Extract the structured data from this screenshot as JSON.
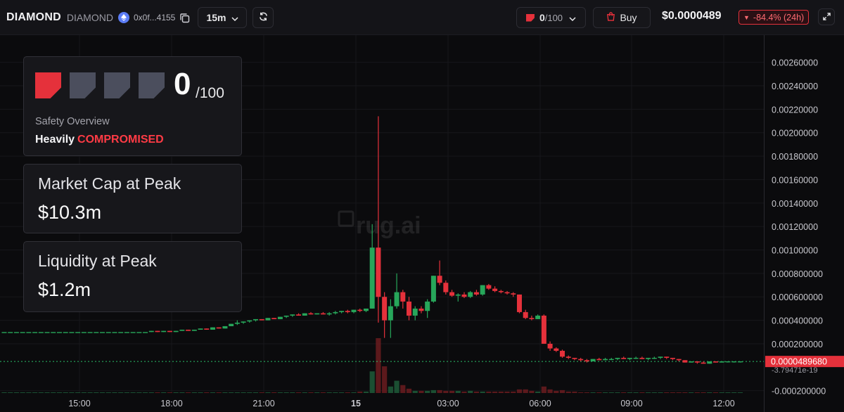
{
  "header": {
    "ticker": "DIAMOND",
    "token_name": "DIAMOND",
    "chain_icon": "ethereum-icon",
    "address": "0x0f...4155",
    "timeframe": "15m",
    "score_value": "0",
    "score_denominator": "/100",
    "buy_label": "Buy",
    "price": "$0.0000489",
    "change": "-84.4% (24h)",
    "change_direction": "down",
    "accent_red": "#e5313b",
    "accent_green": "#27a65a"
  },
  "safety_card": {
    "score": "0",
    "denominator": "/100",
    "segments": [
      true,
      false,
      false,
      false
    ],
    "title": "Safety Overview",
    "status_level": "Heavily",
    "status_word": "COMPROMISED"
  },
  "market_cap_card": {
    "label": "Market Cap at Peak",
    "value": "$10.3m"
  },
  "liquidity_card": {
    "label": "Liquidity at Peak",
    "value": "$1.2m"
  },
  "chart_data": {
    "type": "candlestick",
    "watermark": "rug.ai",
    "y_ticks": [
      "0.00260000",
      "0.00240000",
      "0.00220000",
      "0.00200000",
      "0.00180000",
      "0.00160000",
      "0.00140000",
      "0.00120000",
      "0.00100000",
      "0.000800000",
      "0.000600000",
      "0.000400000",
      "0.000200000",
      "-0.000200000"
    ],
    "y_range": [
      -0.00022,
      0.0027
    ],
    "x_ticks": [
      "15:00",
      "18:00",
      "21:00",
      "15",
      "03:00",
      "06:00",
      "09:00",
      "12:00"
    ],
    "current_price_label": "0.0000489680",
    "baseline_label": "-3.79471e-19",
    "candles": [
      {
        "o": 0.0003,
        "h": 0.0003,
        "l": 0.0003,
        "c": 0.0003
      },
      {
        "o": 0.0003,
        "h": 0.0003,
        "l": 0.0003,
        "c": 0.0003
      },
      {
        "o": 0.0003,
        "h": 0.0003,
        "l": 0.0003,
        "c": 0.0003
      },
      {
        "o": 0.0003,
        "h": 0.0003,
        "l": 0.0003,
        "c": 0.0003
      },
      {
        "o": 0.0003,
        "h": 0.0003,
        "l": 0.0003,
        "c": 0.0003
      },
      {
        "o": 0.0003,
        "h": 0.0003,
        "l": 0.0003,
        "c": 0.0003
      },
      {
        "o": 0.0003,
        "h": 0.0003,
        "l": 0.0003,
        "c": 0.0003
      },
      {
        "o": 0.0003,
        "h": 0.0003,
        "l": 0.0003,
        "c": 0.0003
      },
      {
        "o": 0.0003,
        "h": 0.0003,
        "l": 0.0003,
        "c": 0.0003
      },
      {
        "o": 0.0003,
        "h": 0.0003,
        "l": 0.0003,
        "c": 0.0003
      },
      {
        "o": 0.0003,
        "h": 0.0003,
        "l": 0.0003,
        "c": 0.0003
      },
      {
        "o": 0.0003,
        "h": 0.0003,
        "l": 0.0003,
        "c": 0.0003
      },
      {
        "o": 0.0003,
        "h": 0.0003,
        "l": 0.0003,
        "c": 0.0003
      },
      {
        "o": 0.0003,
        "h": 0.0003,
        "l": 0.0003,
        "c": 0.0003
      },
      {
        "o": 0.0003,
        "h": 0.0003,
        "l": 0.0003,
        "c": 0.0003
      },
      {
        "o": 0.0003,
        "h": 0.0003,
        "l": 0.0003,
        "c": 0.0003
      },
      {
        "o": 0.0003,
        "h": 0.0003,
        "l": 0.0003,
        "c": 0.0003
      },
      {
        "o": 0.0003,
        "h": 0.0003,
        "l": 0.0003,
        "c": 0.0003
      },
      {
        "o": 0.0003,
        "h": 0.0003,
        "l": 0.0003,
        "c": 0.0003
      },
      {
        "o": 0.0003,
        "h": 0.0003,
        "l": 0.0003,
        "c": 0.0003
      },
      {
        "o": 0.0003,
        "h": 0.0003,
        "l": 0.0003,
        "c": 0.0003
      },
      {
        "o": 0.0003,
        "h": 0.0003,
        "l": 0.0003,
        "c": 0.0003
      },
      {
        "o": 0.0003,
        "h": 0.0003,
        "l": 0.0003,
        "c": 0.0003
      },
      {
        "o": 0.0003,
        "h": 0.0003,
        "l": 0.0003,
        "c": 0.0003
      },
      {
        "o": 0.0003,
        "h": 0.00031,
        "l": 0.0003,
        "c": 0.00031
      },
      {
        "o": 0.00031,
        "h": 0.00031,
        "l": 0.0003,
        "c": 0.0003
      },
      {
        "o": 0.0003,
        "h": 0.00031,
        "l": 0.0003,
        "c": 0.00031
      },
      {
        "o": 0.00031,
        "h": 0.00031,
        "l": 0.0003,
        "c": 0.0003
      },
      {
        "o": 0.0003,
        "h": 0.00031,
        "l": 0.0003,
        "c": 0.00031
      },
      {
        "o": 0.00031,
        "h": 0.00032,
        "l": 0.00031,
        "c": 0.00032
      },
      {
        "o": 0.00032,
        "h": 0.00032,
        "l": 0.00031,
        "c": 0.00031
      },
      {
        "o": 0.00031,
        "h": 0.00032,
        "l": 0.00031,
        "c": 0.00032
      },
      {
        "o": 0.00032,
        "h": 0.00033,
        "l": 0.00032,
        "c": 0.00033
      },
      {
        "o": 0.00033,
        "h": 0.00033,
        "l": 0.00032,
        "c": 0.00032
      },
      {
        "o": 0.00032,
        "h": 0.00034,
        "l": 0.00032,
        "c": 0.00034
      },
      {
        "o": 0.00034,
        "h": 0.00034,
        "l": 0.00033,
        "c": 0.00033
      },
      {
        "o": 0.00033,
        "h": 0.00035,
        "l": 0.00033,
        "c": 0.00035
      },
      {
        "o": 0.00035,
        "h": 0.00037,
        "l": 0.00035,
        "c": 0.00037
      },
      {
        "o": 0.00037,
        "h": 0.0004,
        "l": 0.00036,
        "c": 0.00038
      },
      {
        "o": 0.00038,
        "h": 0.00039,
        "l": 0.00037,
        "c": 0.00039
      },
      {
        "o": 0.00039,
        "h": 0.0004,
        "l": 0.00038,
        "c": 0.0004
      },
      {
        "o": 0.0004,
        "h": 0.00041,
        "l": 0.00039,
        "c": 0.00041
      },
      {
        "o": 0.00041,
        "h": 0.00041,
        "l": 0.0004,
        "c": 0.0004
      },
      {
        "o": 0.0004,
        "h": 0.00042,
        "l": 0.0004,
        "c": 0.00042
      },
      {
        "o": 0.00042,
        "h": 0.00042,
        "l": 0.00041,
        "c": 0.00041
      },
      {
        "o": 0.00041,
        "h": 0.00043,
        "l": 0.00041,
        "c": 0.00043
      },
      {
        "o": 0.00043,
        "h": 0.00044,
        "l": 0.00042,
        "c": 0.00044
      },
      {
        "o": 0.00044,
        "h": 0.00045,
        "l": 0.00043,
        "c": 0.00045
      },
      {
        "o": 0.00045,
        "h": 0.00046,
        "l": 0.00044,
        "c": 0.00044
      },
      {
        "o": 0.00044,
        "h": 0.00046,
        "l": 0.00044,
        "c": 0.00046
      },
      {
        "o": 0.00046,
        "h": 0.00047,
        "l": 0.00045,
        "c": 0.00045
      },
      {
        "o": 0.00045,
        "h": 0.00046,
        "l": 0.00045,
        "c": 0.00046
      },
      {
        "o": 0.00046,
        "h": 0.00047,
        "l": 0.00045,
        "c": 0.00045
      },
      {
        "o": 0.00045,
        "h": 0.00047,
        "l": 0.00044,
        "c": 0.00046
      },
      {
        "o": 0.00046,
        "h": 0.00048,
        "l": 0.00045,
        "c": 0.00047
      },
      {
        "o": 0.00047,
        "h": 0.00048,
        "l": 0.00046,
        "c": 0.00048
      },
      {
        "o": 0.00048,
        "h": 0.00049,
        "l": 0.00046,
        "c": 0.00047
      },
      {
        "o": 0.00047,
        "h": 0.00049,
        "l": 0.00046,
        "c": 0.00049
      },
      {
        "o": 0.00049,
        "h": 0.0005,
        "l": 0.00047,
        "c": 0.00048
      },
      {
        "o": 0.00048,
        "h": 0.0005,
        "l": 0.00047,
        "c": 0.0005
      },
      {
        "o": 0.0005,
        "h": 0.00122,
        "l": 0.0005,
        "c": 0.00102
      },
      {
        "o": 0.00102,
        "h": 0.00214,
        "l": 0.00038,
        "c": 0.0006
      },
      {
        "o": 0.0006,
        "h": 0.00064,
        "l": 0.00025,
        "c": 0.0004
      },
      {
        "o": 0.0004,
        "h": 0.00058,
        "l": 0.00025,
        "c": 0.00052
      },
      {
        "o": 0.00052,
        "h": 0.0008,
        "l": 0.0005,
        "c": 0.00064
      },
      {
        "o": 0.00064,
        "h": 0.00066,
        "l": 0.0005,
        "c": 0.00056
      },
      {
        "o": 0.00056,
        "h": 0.0006,
        "l": 0.0004,
        "c": 0.00044
      },
      {
        "o": 0.00044,
        "h": 0.00052,
        "l": 0.0004,
        "c": 0.0005
      },
      {
        "o": 0.0005,
        "h": 0.00052,
        "l": 0.00046,
        "c": 0.00048
      },
      {
        "o": 0.00048,
        "h": 0.00058,
        "l": 0.00042,
        "c": 0.00056
      },
      {
        "o": 0.00056,
        "h": 0.00078,
        "l": 0.00055,
        "c": 0.00078
      },
      {
        "o": 0.00078,
        "h": 0.00091,
        "l": 0.0007,
        "c": 0.00072
      },
      {
        "o": 0.00072,
        "h": 0.00074,
        "l": 0.00062,
        "c": 0.00064
      },
      {
        "o": 0.00064,
        "h": 0.00066,
        "l": 0.0006,
        "c": 0.00061
      },
      {
        "o": 0.00061,
        "h": 0.00063,
        "l": 0.00056,
        "c": 0.00062
      },
      {
        "o": 0.00062,
        "h": 0.00064,
        "l": 0.00059,
        "c": 0.0006
      },
      {
        "o": 0.0006,
        "h": 0.00065,
        "l": 0.00059,
        "c": 0.00064
      },
      {
        "o": 0.00064,
        "h": 0.00066,
        "l": 0.00061,
        "c": 0.00062
      },
      {
        "o": 0.00062,
        "h": 0.0007,
        "l": 0.00061,
        "c": 0.0007
      },
      {
        "o": 0.0007,
        "h": 0.00071,
        "l": 0.00066,
        "c": 0.00067
      },
      {
        "o": 0.00067,
        "h": 0.00069,
        "l": 0.00064,
        "c": 0.00065
      },
      {
        "o": 0.00065,
        "h": 0.00066,
        "l": 0.00063,
        "c": 0.00064
      },
      {
        "o": 0.00064,
        "h": 0.00065,
        "l": 0.00062,
        "c": 0.00063
      },
      {
        "o": 0.00063,
        "h": 0.00064,
        "l": 0.0006,
        "c": 0.00062
      },
      {
        "o": 0.00062,
        "h": 0.00062,
        "l": 0.00046,
        "c": 0.00047
      },
      {
        "o": 0.00047,
        "h": 0.00049,
        "l": 0.00041,
        "c": 0.00042
      },
      {
        "o": 0.00042,
        "h": 0.00044,
        "l": 0.0004,
        "c": 0.00041
      },
      {
        "o": 0.00041,
        "h": 0.00045,
        "l": 0.00041,
        "c": 0.00044
      },
      {
        "o": 0.00044,
        "h": 0.00045,
        "l": 0.0002,
        "c": 0.0002
      },
      {
        "o": 0.0002,
        "h": 0.00022,
        "l": 0.00014,
        "c": 0.00016
      },
      {
        "o": 0.00016,
        "h": 0.00017,
        "l": 0.00013,
        "c": 0.00014
      },
      {
        "o": 0.00014,
        "h": 0.00015,
        "l": 8e-05,
        "c": 9e-05
      },
      {
        "o": 9e-05,
        "h": 0.0001,
        "l": 7e-05,
        "c": 8e-05
      },
      {
        "o": 8e-05,
        "h": 8e-05,
        "l": 6e-05,
        "c": 7e-05
      },
      {
        "o": 7e-05,
        "h": 8e-05,
        "l": 5e-05,
        "c": 6e-05
      },
      {
        "o": 6e-05,
        "h": 7e-05,
        "l": 4e-05,
        "c": 5e-05
      },
      {
        "o": 5e-05,
        "h": 7e-05,
        "l": 5e-05,
        "c": 7e-05
      },
      {
        "o": 7e-05,
        "h": 8e-05,
        "l": 6e-05,
        "c": 6e-05
      },
      {
        "o": 6e-05,
        "h": 8e-05,
        "l": 6e-05,
        "c": 7e-05
      },
      {
        "o": 7e-05,
        "h": 8e-05,
        "l": 6e-05,
        "c": 7e-05
      },
      {
        "o": 7e-05,
        "h": 8e-05,
        "l": 6e-05,
        "c": 8e-05
      },
      {
        "o": 8e-05,
        "h": 9e-05,
        "l": 7e-05,
        "c": 7e-05
      },
      {
        "o": 7e-05,
        "h": 8e-05,
        "l": 6e-05,
        "c": 8e-05
      },
      {
        "o": 8e-05,
        "h": 9e-05,
        "l": 7e-05,
        "c": 8e-05
      },
      {
        "o": 8e-05,
        "h": 9e-05,
        "l": 7e-05,
        "c": 7e-05
      },
      {
        "o": 7e-05,
        "h": 8e-05,
        "l": 6e-05,
        "c": 8e-05
      },
      {
        "o": 8e-05,
        "h": 9e-05,
        "l": 7e-05,
        "c": 8e-05
      },
      {
        "o": 8e-05,
        "h": 9e-05,
        "l": 7e-05,
        "c": 9e-05
      },
      {
        "o": 9e-05,
        "h": 9e-05,
        "l": 7e-05,
        "c": 8e-05
      },
      {
        "o": 8e-05,
        "h": 8e-05,
        "l": 6e-05,
        "c": 7e-05
      },
      {
        "o": 7e-05,
        "h": 7e-05,
        "l": 5e-05,
        "c": 6e-05
      },
      {
        "o": 6e-05,
        "h": 6e-05,
        "l": 4e-05,
        "c": 4e-05
      },
      {
        "o": 4e-05,
        "h": 5e-05,
        "l": 4e-05,
        "c": 5e-05
      },
      {
        "o": 5e-05,
        "h": 5e-05,
        "l": 3e-05,
        "c": 4e-05
      },
      {
        "o": 4e-05,
        "h": 5e-05,
        "l": 3e-05,
        "c": 3e-05
      },
      {
        "o": 3e-05,
        "h": 5e-05,
        "l": 3e-05,
        "c": 5e-05
      },
      {
        "o": 5e-05,
        "h": 5e-05,
        "l": 4e-05,
        "c": 4e-05
      },
      {
        "o": 4e-05,
        "h": 5e-05,
        "l": 4e-05,
        "c": 5e-05
      },
      {
        "o": 5e-05,
        "h": 5e-05,
        "l": 4e-05,
        "c": 5e-05
      },
      {
        "o": 5e-05,
        "h": 5e-05,
        "l": 4e-05,
        "c": 5e-05
      },
      {
        "o": 5e-05,
        "h": 5e-05,
        "l": 4e-05,
        "c": 5e-05
      }
    ],
    "volume": [
      1,
      1,
      1,
      1,
      1,
      1,
      1,
      1,
      1,
      1,
      1,
      1,
      1,
      1,
      1,
      1,
      1,
      1,
      1,
      1,
      1,
      1,
      1,
      1,
      1,
      1,
      1,
      1,
      1,
      1,
      1,
      1,
      1,
      1,
      1,
      1,
      1,
      1,
      1,
      1,
      1,
      1,
      1,
      1,
      1,
      1,
      1,
      1,
      1,
      1,
      1,
      1,
      1,
      1,
      1,
      1,
      1,
      1,
      2,
      2,
      30,
      76,
      37,
      9,
      17,
      11,
      6,
      3,
      3,
      3,
      4,
      4,
      3,
      3,
      3,
      2,
      3,
      2,
      2,
      2,
      2,
      2,
      2,
      2,
      5,
      5,
      3,
      2,
      9,
      5,
      3,
      4,
      2,
      2,
      1,
      1,
      1,
      1,
      1,
      1,
      1,
      1,
      1,
      1,
      1,
      1,
      1,
      1,
      1,
      1,
      1,
      1,
      1,
      1,
      1,
      1,
      1,
      1,
      1,
      1,
      1,
      1
    ]
  }
}
